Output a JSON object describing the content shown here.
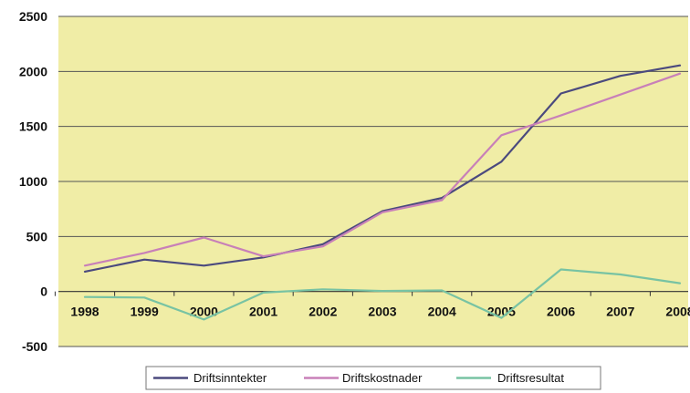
{
  "chart_data": {
    "type": "line",
    "x": [
      "1998",
      "1999",
      "2000",
      "2001",
      "2002",
      "2003",
      "2004",
      "2005",
      "2006",
      "2007",
      "2008"
    ],
    "series": [
      {
        "name": "Driftsinntekter",
        "color": "#4b4a7e",
        "values": [
          180,
          290,
          235,
          310,
          430,
          730,
          850,
          1180,
          1800,
          1960,
          2055
        ]
      },
      {
        "name": "Driftskostnader",
        "color": "#c880b8",
        "values": [
          235,
          350,
          490,
          320,
          410,
          720,
          830,
          1420,
          1600,
          1790,
          1980
        ]
      },
      {
        "name": "Driftsresultat",
        "color": "#78c3a3",
        "values": [
          -50,
          -55,
          -255,
          -10,
          20,
          5,
          10,
          -240,
          200,
          155,
          75
        ]
      }
    ],
    "ylim": [
      -500,
      2500
    ],
    "yticks": [
      2500,
      2000,
      1500,
      1000,
      500,
      0,
      -500
    ],
    "grid": true,
    "plot_background": "#f0eda6",
    "legend_position": "bottom",
    "title": "",
    "xlabel": "",
    "ylabel": ""
  }
}
